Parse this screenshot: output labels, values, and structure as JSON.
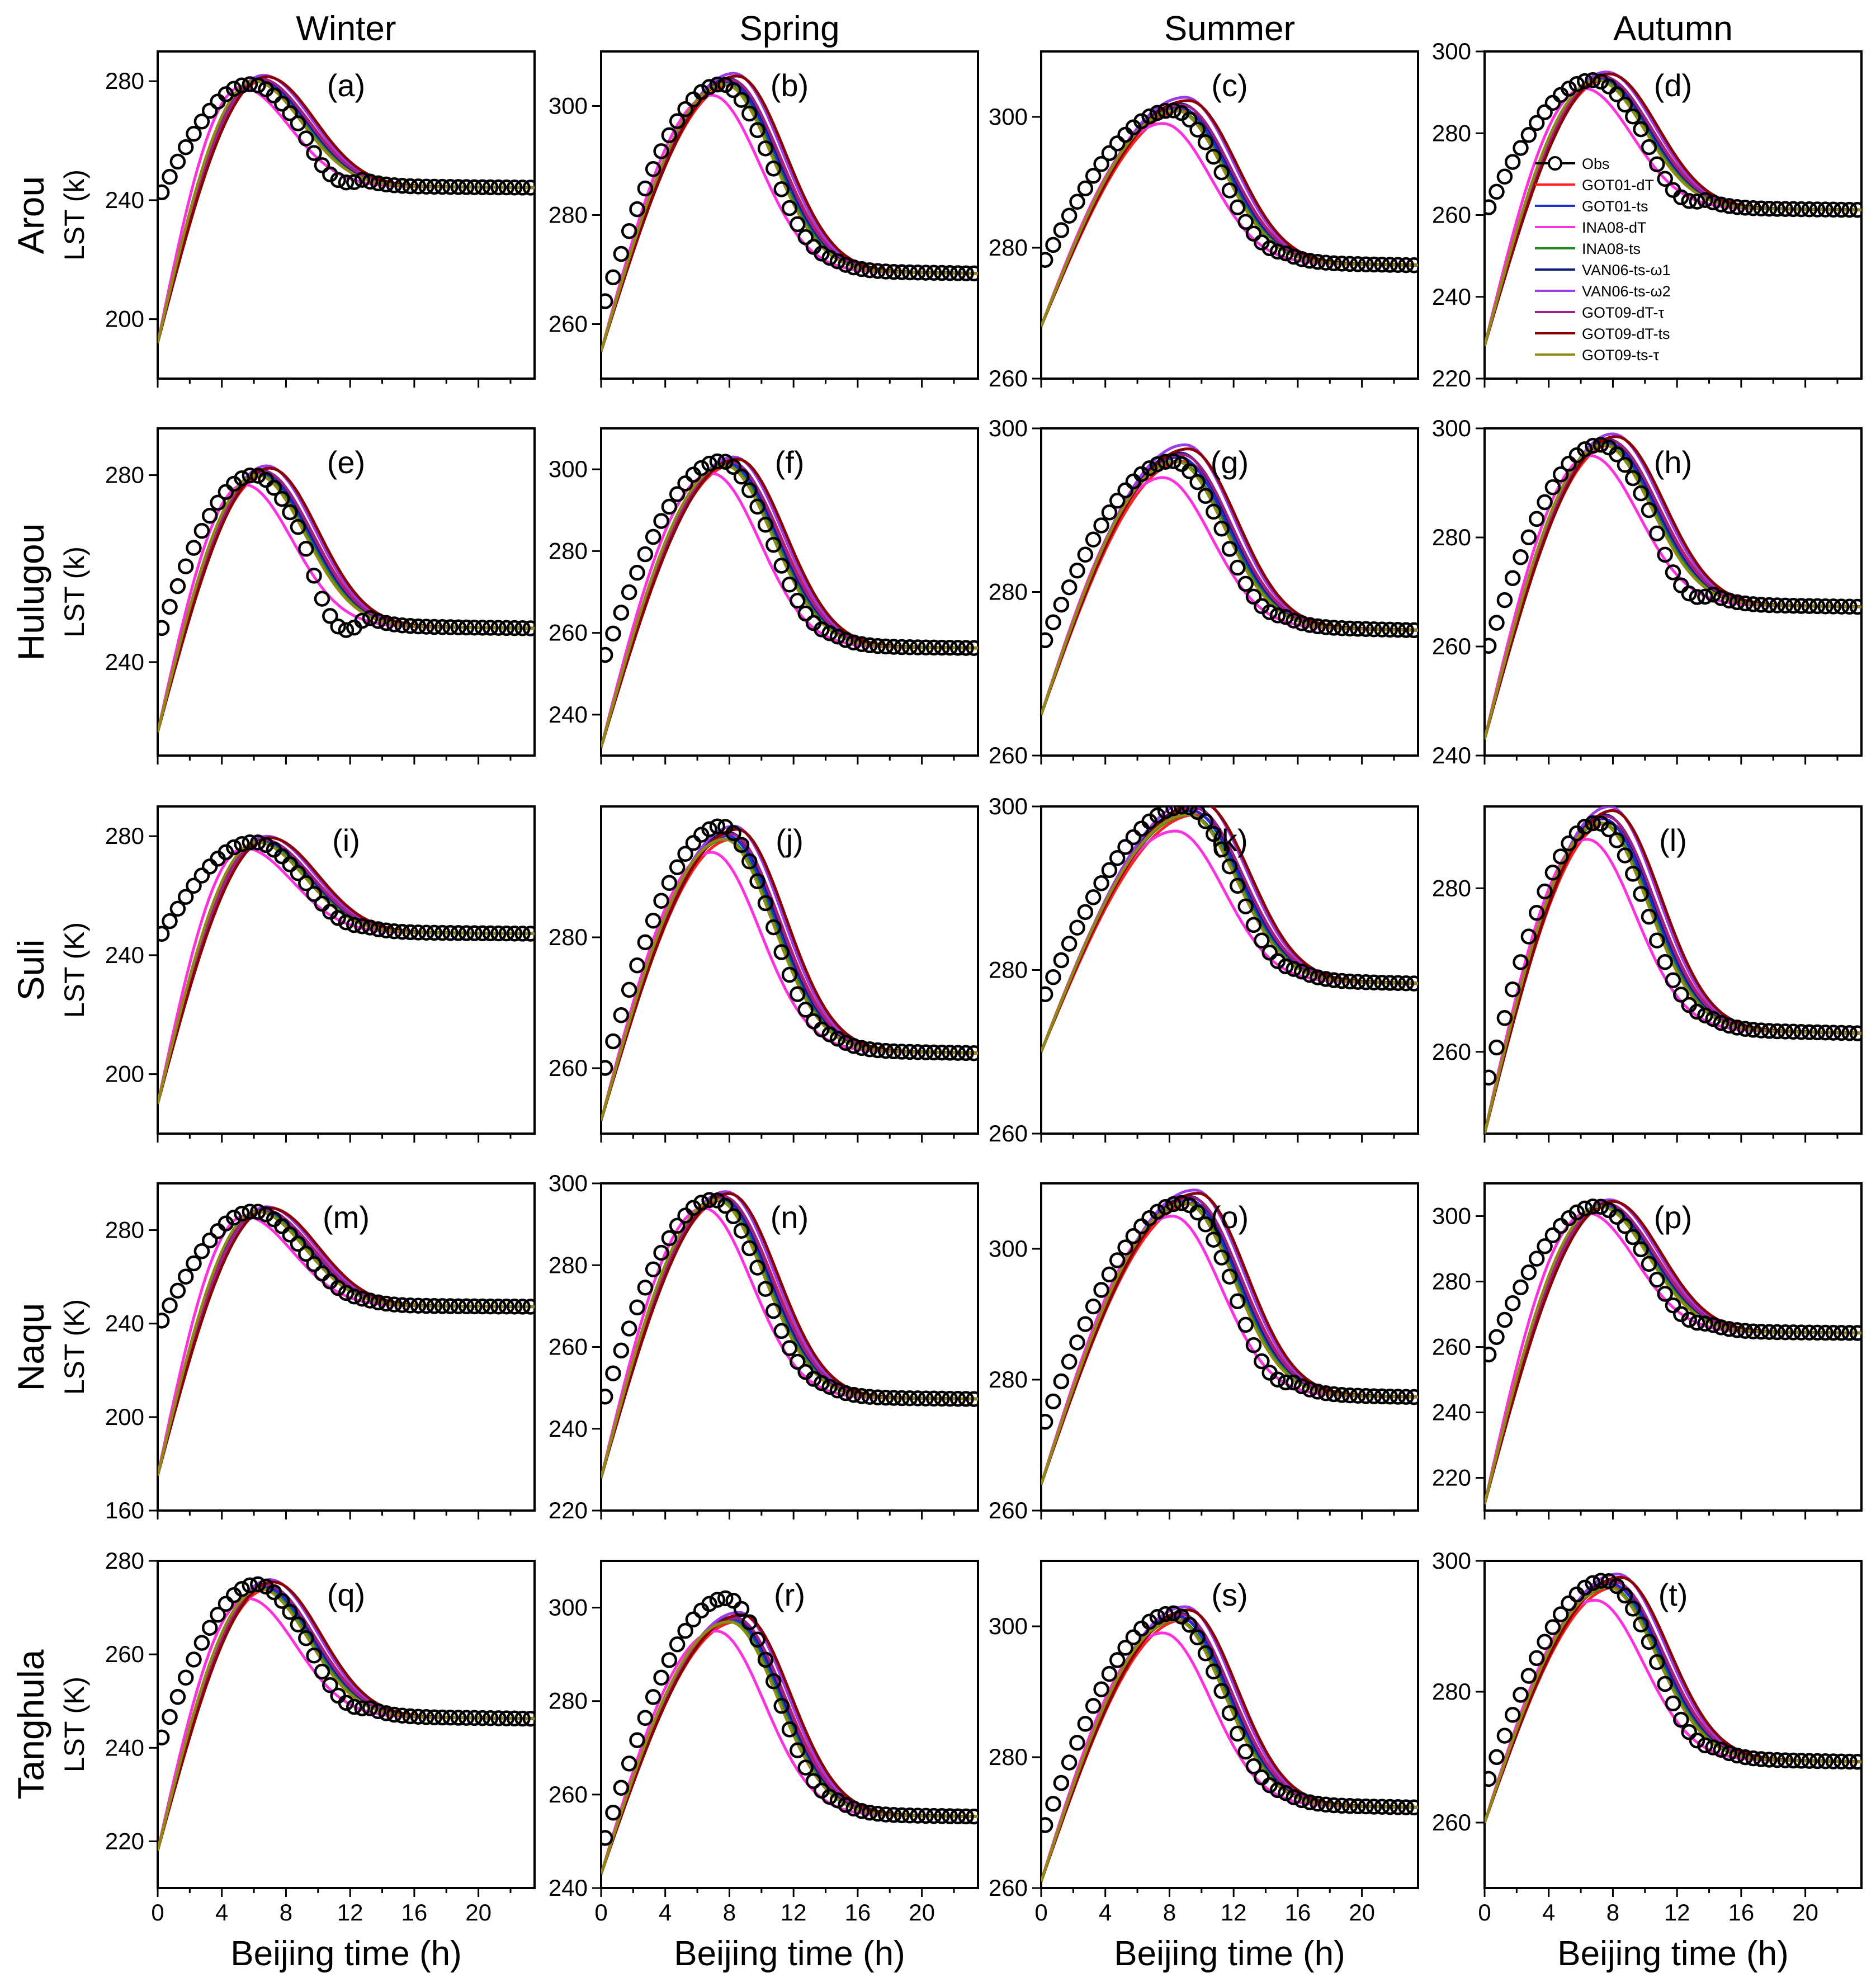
{
  "figure": {
    "seasons": [
      "Winter",
      "Spring",
      "Summer",
      "Autumn"
    ],
    "sites": [
      "Arou",
      "Hulugou",
      "Suli",
      "Naqu",
      "Tanghula"
    ],
    "xlabel": "Beijing time (h)"
  },
  "legend": [
    {
      "name": "Obs",
      "color": "#000000",
      "marker": "circle"
    },
    {
      "name": "GOT01-dT",
      "color": "#ff2020"
    },
    {
      "name": "GOT01-ts",
      "color": "#1f2bd6"
    },
    {
      "name": "INA08-dT",
      "color": "#ff30e0"
    },
    {
      "name": "INA08-ts",
      "color": "#1f8a1f"
    },
    {
      "name": "VAN06-ts-ω1",
      "color": "#0d1a80"
    },
    {
      "name": "VAN06-ts-ω2",
      "color": "#9b3ce8"
    },
    {
      "name": "GOT09-dT-τ",
      "color": "#a0208a"
    },
    {
      "name": "GOT09-dT-ts",
      "color": "#8b0000"
    },
    {
      "name": "GOT09-ts-τ",
      "color": "#8f8a14"
    }
  ],
  "chart_data": [
    {
      "type": "line",
      "label": "(a)",
      "site": "Arou",
      "season": "Winter",
      "ylabel": "LST (k)",
      "xlim": [
        0,
        23.5
      ],
      "ylim": [
        180,
        290
      ],
      "yticks": [
        200,
        240,
        280
      ],
      "xticks": [
        0,
        4,
        8,
        12,
        16,
        20
      ],
      "T0": 192,
      "Tpre": 240,
      "Tmax": 280,
      "tm": 5.8,
      "Tend": 245,
      "obs_dip": -8,
      "obs_max": 279
    },
    {
      "type": "line",
      "label": "(b)",
      "site": "Arou",
      "season": "Spring",
      "ylabel": "",
      "xlim": [
        0,
        23.5
      ],
      "ylim": [
        250,
        310
      ],
      "yticks": [
        260,
        280,
        300
      ],
      "xticks": [
        0,
        4,
        8,
        12,
        16,
        20
      ],
      "T0": 255,
      "Tpre": 262,
      "Tmax": 304,
      "tm": 7.5,
      "Tend": 270,
      "obs_dip": -2,
      "obs_max": 304
    },
    {
      "type": "line",
      "label": "(c)",
      "site": "Arou",
      "season": "Summer",
      "ylabel": "",
      "xlim": [
        0,
        23.5
      ],
      "ylim": [
        260,
        310
      ],
      "yticks": [
        260,
        280,
        300
      ],
      "xticks": [
        0,
        4,
        8,
        12,
        16,
        20
      ],
      "T0": 268,
      "Tpre": 277,
      "Tmax": 301,
      "tm": 8.2,
      "Tend": 278,
      "obs_dip": -2,
      "obs_max": 301
    },
    {
      "type": "line",
      "label": "(d)",
      "site": "Arou",
      "season": "Autumn",
      "ylabel": "",
      "xlim": [
        0,
        23.5
      ],
      "ylim": [
        220,
        300
      ],
      "yticks": [
        220,
        240,
        260,
        280,
        300
      ],
      "xticks": [
        0,
        4,
        8,
        12,
        16,
        20
      ],
      "T0": 228,
      "Tpre": 260,
      "Tmax": 293,
      "tm": 6.8,
      "Tend": 262,
      "obs_dip": -6,
      "obs_max": 293
    },
    {
      "type": "line",
      "label": "(e)",
      "site": "Hulugou",
      "season": "Winter",
      "ylabel": "LST (k)",
      "xlim": [
        0,
        23.5
      ],
      "ylim": [
        220,
        290
      ],
      "yticks": [
        240,
        280
      ],
      "xticks": [
        0,
        4,
        8,
        12,
        16,
        20
      ],
      "T0": 225,
      "Tpre": 245,
      "Tmax": 280,
      "tm": 6.0,
      "Tend": 248,
      "obs_dip": -12,
      "obs_max": 280
    },
    {
      "type": "line",
      "label": "(f)",
      "site": "Hulugou",
      "season": "Spring",
      "ylabel": "",
      "xlim": [
        0,
        23.5
      ],
      "ylim": [
        230,
        310
      ],
      "yticks": [
        240,
        260,
        280,
        300
      ],
      "xticks": [
        0,
        4,
        8,
        12,
        16,
        20
      ],
      "T0": 232,
      "Tpre": 252,
      "Tmax": 301,
      "tm": 7.5,
      "Tend": 257,
      "obs_dip": -3,
      "obs_max": 302
    },
    {
      "type": "line",
      "label": "(g)",
      "site": "Hulugou",
      "season": "Summer",
      "ylabel": "",
      "xlim": [
        0,
        23.5
      ],
      "ylim": [
        260,
        300
      ],
      "yticks": [
        260,
        280,
        300
      ],
      "xticks": [
        0,
        4,
        8,
        12,
        16,
        20
      ],
      "T0": 265,
      "Tpre": 273,
      "Tmax": 296,
      "tm": 8.2,
      "Tend": 276,
      "obs_dip": -2,
      "obs_max": 296
    },
    {
      "type": "line",
      "label": "(h)",
      "site": "Hulugou",
      "season": "Autumn",
      "ylabel": "",
      "xlim": [
        0,
        23.5
      ],
      "ylim": [
        240,
        300
      ],
      "yticks": [
        240,
        260,
        280,
        300
      ],
      "xticks": [
        0,
        4,
        8,
        12,
        16,
        20
      ],
      "T0": 243,
      "Tpre": 258,
      "Tmax": 297,
      "tm": 7.2,
      "Tend": 268,
      "obs_dip": -6,
      "obs_max": 297
    },
    {
      "type": "line",
      "label": "(i)",
      "site": "Suli",
      "season": "Winter",
      "ylabel": "LST (K)",
      "xlim": [
        0,
        23.5
      ],
      "ylim": [
        180,
        290
      ],
      "yticks": [
        200,
        240,
        280
      ],
      "xticks": [
        0,
        4,
        8,
        12,
        16,
        20
      ],
      "T0": 190,
      "Tpre": 245,
      "Tmax": 278,
      "tm": 6.0,
      "Tend": 248,
      "obs_dip": -3,
      "obs_max": 278
    },
    {
      "type": "line",
      "label": "(j)",
      "site": "Suli",
      "season": "Spring",
      "ylabel": "",
      "xlim": [
        0,
        23.5
      ],
      "ylim": [
        250,
        300
      ],
      "yticks": [
        260,
        280
      ],
      "xticks": [
        0,
        4,
        8,
        12,
        16,
        20
      ],
      "T0": 252,
      "Tpre": 258,
      "Tmax": 295,
      "tm": 7.5,
      "Tend": 263,
      "obs_dip": -2,
      "obs_max": 297
    },
    {
      "type": "line",
      "label": "(k)",
      "site": "Suli",
      "season": "Summer",
      "ylabel": "",
      "xlim": [
        0,
        23.5
      ],
      "ylim": [
        260,
        300
      ],
      "yticks": [
        260,
        280,
        300
      ],
      "xticks": [
        0,
        4,
        8,
        12,
        16,
        20
      ],
      "T0": 270,
      "Tpre": 276,
      "Tmax": 299,
      "tm": 9.0,
      "Tend": 279,
      "obs_dip": -2,
      "obs_max": 300
    },
    {
      "type": "line",
      "label": "(l)",
      "site": "Suli",
      "season": "Autumn",
      "ylabel": "",
      "xlim": [
        0,
        23.5
      ],
      "ylim": [
        250,
        290
      ],
      "yticks": [
        260,
        280
      ],
      "xticks": [
        0,
        4,
        8,
        12,
        16,
        20
      ],
      "T0": 250,
      "Tpre": 255,
      "Tmax": 288,
      "tm": 7.0,
      "Tend": 263,
      "obs_dip": -2,
      "obs_max": 288
    },
    {
      "type": "line",
      "label": "(m)",
      "site": "Naqu",
      "season": "Winter",
      "ylabel": "LST (K)",
      "xlim": [
        0,
        23.5
      ],
      "ylim": [
        160,
        300
      ],
      "yticks": [
        160,
        200,
        240,
        280
      ],
      "xticks": [
        0,
        4,
        8,
        12,
        16,
        20
      ],
      "T0": 175,
      "Tpre": 238,
      "Tmax": 288,
      "tm": 6.0,
      "Tend": 248,
      "obs_dip": -2,
      "obs_max": 288
    },
    {
      "type": "line",
      "label": "(n)",
      "site": "Naqu",
      "season": "Spring",
      "ylabel": "",
      "xlim": [
        0,
        23.5
      ],
      "ylim": [
        220,
        300
      ],
      "yticks": [
        220,
        240,
        260,
        280,
        300
      ],
      "xticks": [
        0,
        4,
        8,
        12,
        16,
        20
      ],
      "T0": 228,
      "Tpre": 245,
      "Tmax": 296,
      "tm": 7.0,
      "Tend": 248,
      "obs_dip": -3,
      "obs_max": 296
    },
    {
      "type": "line",
      "label": "(o)",
      "site": "Naqu",
      "season": "Summer",
      "ylabel": "",
      "xlim": [
        0,
        23.5
      ],
      "ylim": [
        260,
        310
      ],
      "yticks": [
        260,
        280,
        300
      ],
      "xticks": [
        0,
        4,
        8,
        12,
        16,
        20
      ],
      "T0": 264,
      "Tpre": 272,
      "Tmax": 307,
      "tm": 8.8,
      "Tend": 278,
      "obs_dip": -4,
      "obs_max": 307
    },
    {
      "type": "line",
      "label": "(p)",
      "site": "Naqu",
      "season": "Autumn",
      "ylabel": "",
      "xlim": [
        0,
        23.5
      ],
      "ylim": [
        210,
        310
      ],
      "yticks": [
        220,
        240,
        260,
        280,
        300
      ],
      "xticks": [
        0,
        4,
        8,
        12,
        16,
        20
      ],
      "T0": 212,
      "Tpre": 255,
      "Tmax": 303,
      "tm": 7.0,
      "Tend": 265,
      "obs_dip": -5,
      "obs_max": 303
    },
    {
      "type": "line",
      "label": "(q)",
      "site": "Tanghula",
      "season": "Winter",
      "ylabel": "LST (K)",
      "xlim": [
        0,
        23.5
      ],
      "ylim": [
        210,
        280
      ],
      "yticks": [
        220,
        240,
        260,
        280
      ],
      "xticks": [
        0,
        4,
        8,
        12,
        16,
        20
      ],
      "T0": 218,
      "Tpre": 240,
      "Tmax": 274,
      "tm": 6.2,
      "Tend": 247,
      "obs_dip": -4,
      "obs_max": 275
    },
    {
      "type": "line",
      "label": "(r)",
      "site": "Tanghula",
      "season": "Spring",
      "ylabel": "",
      "xlim": [
        0,
        23.5
      ],
      "ylim": [
        240,
        310
      ],
      "yticks": [
        240,
        260,
        280,
        300
      ],
      "xticks": [
        0,
        4,
        8,
        12,
        16,
        20
      ],
      "T0": 243,
      "Tpre": 248,
      "Tmax": 297,
      "tm": 7.8,
      "Tend": 256,
      "obs_dip": -3,
      "obs_max": 302
    },
    {
      "type": "line",
      "label": "(s)",
      "site": "Tanghula",
      "season": "Summer",
      "ylabel": "",
      "xlim": [
        0,
        23.5
      ],
      "ylim": [
        260,
        310
      ],
      "yticks": [
        260,
        280,
        300
      ],
      "xticks": [
        0,
        4,
        8,
        12,
        16,
        20
      ],
      "T0": 261,
      "Tpre": 268,
      "Tmax": 301,
      "tm": 8.2,
      "Tend": 273,
      "obs_dip": -2,
      "obs_max": 302
    },
    {
      "type": "line",
      "label": "(t)",
      "site": "Tanghula",
      "season": "Autumn",
      "ylabel": "",
      "xlim": [
        0,
        23.5
      ],
      "ylim": [
        250,
        300
      ],
      "yticks": [
        260,
        280,
        300
      ],
      "xticks": [
        0,
        4,
        8,
        12,
        16,
        20
      ],
      "T0": 260,
      "Tpre": 265,
      "Tmax": 296,
      "tm": 7.5,
      "Tend": 270,
      "obs_dip": -3,
      "obs_max": 297
    }
  ]
}
